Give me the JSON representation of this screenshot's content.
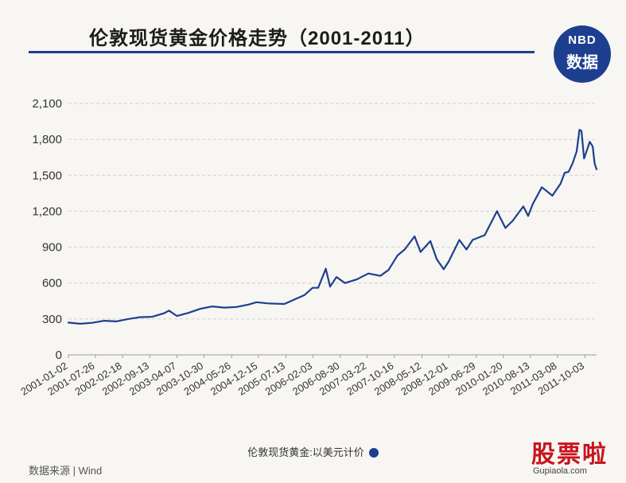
{
  "header": {
    "title": "伦敦现货黄金价格走势（2001-2011）",
    "logo_line1": "NBD",
    "logo_line2": "数据"
  },
  "legend": {
    "label": "伦敦现货黄金:以美元计价"
  },
  "source": {
    "text": "数据来源 | Wind"
  },
  "brand": {
    "name": "股票啦",
    "url": "Gupiaola.com"
  },
  "colors": {
    "series": "#1e3f8f",
    "accent": "#1e3f8f",
    "brand": "#c8141e"
  },
  "chart_data": {
    "type": "line",
    "title": "伦敦现货黄金价格走势（2001-2011）",
    "xlabel": "",
    "ylabel": "",
    "ylim": [
      0,
      2100
    ],
    "yticks": [
      0,
      300,
      600,
      900,
      1200,
      1500,
      1800,
      2100
    ],
    "ytick_labels": [
      "0",
      "300",
      "600",
      "900",
      "1,200",
      "1,500",
      "1,800",
      "2,100"
    ],
    "xlim": [
      "2001-01-02",
      "2011-12-30"
    ],
    "xticks": [
      "2001-01-02",
      "2001-07-26",
      "2002-02-18",
      "2002-09-13",
      "2003-04-07",
      "2003-10-30",
      "2004-05-26",
      "2004-12-15",
      "2005-07-13",
      "2006-02-03",
      "2006-08-30",
      "2007-03-22",
      "2007-10-16",
      "2008-05-12",
      "2008-12-01",
      "2009-06-29",
      "2010-01-20",
      "2010-08-13",
      "2011-03-08",
      "2011-10-03"
    ],
    "grid": "horizontal-dashed",
    "legend_position": "bottom",
    "series": [
      {
        "name": "伦敦现货黄金:以美元计价",
        "x": [
          "2001-01-02",
          "2001-04-01",
          "2001-07-01",
          "2001-10-01",
          "2002-01-01",
          "2002-04-01",
          "2002-07-01",
          "2002-10-01",
          "2003-01-01",
          "2003-02-05",
          "2003-04-07",
          "2003-07-01",
          "2003-10-01",
          "2004-01-01",
          "2004-04-01",
          "2004-07-01",
          "2004-10-01",
          "2004-12-01",
          "2005-03-01",
          "2005-07-01",
          "2005-10-01",
          "2005-12-01",
          "2006-02-01",
          "2006-03-15",
          "2006-05-12",
          "2006-06-14",
          "2006-08-01",
          "2006-10-05",
          "2007-01-02",
          "2007-04-01",
          "2007-07-01",
          "2007-09-01",
          "2007-11-08",
          "2008-01-01",
          "2008-03-17",
          "2008-05-01",
          "2008-07-15",
          "2008-09-01",
          "2008-10-24",
          "2008-12-01",
          "2009-02-20",
          "2009-04-15",
          "2009-06-01",
          "2009-09-01",
          "2009-12-03",
          "2010-02-05",
          "2010-04-01",
          "2010-06-21",
          "2010-07-28",
          "2010-09-01",
          "2010-11-09",
          "2011-01-28",
          "2011-04-01",
          "2011-05-01",
          "2011-06-01",
          "2011-07-01",
          "2011-08-01",
          "2011-08-22",
          "2011-09-06",
          "2011-09-26",
          "2011-10-15",
          "2011-11-08",
          "2011-12-01",
          "2011-12-15",
          "2011-12-30"
        ],
        "values": [
          270,
          260,
          268,
          285,
          280,
          300,
          315,
          318,
          348,
          370,
          325,
          350,
          385,
          405,
          395,
          400,
          420,
          440,
          430,
          425,
          470,
          500,
          560,
          560,
          720,
          570,
          650,
          600,
          630,
          680,
          660,
          710,
          830,
          880,
          990,
          860,
          950,
          800,
          715,
          780,
          960,
          880,
          960,
          1000,
          1200,
          1060,
          1120,
          1240,
          1160,
          1260,
          1400,
          1330,
          1430,
          1520,
          1530,
          1600,
          1700,
          1880,
          1870,
          1640,
          1700,
          1780,
          1740,
          1600,
          1550
        ]
      }
    ]
  }
}
